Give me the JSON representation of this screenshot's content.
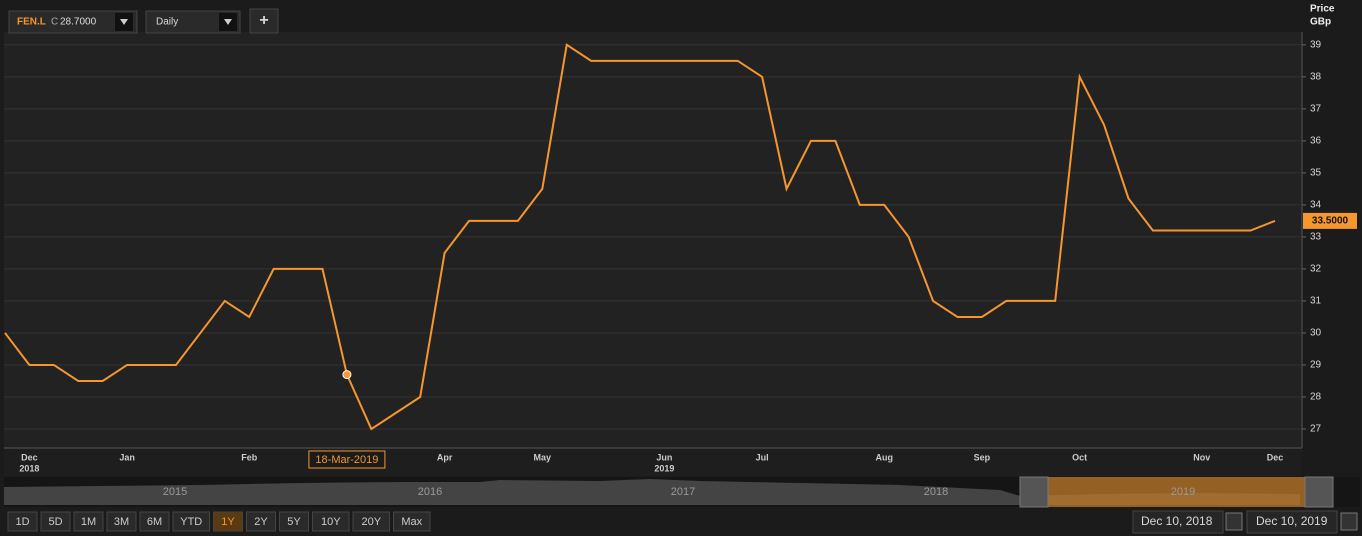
{
  "ui": {
    "ticker": "FEN.L",
    "quote_label": "C",
    "quote_value": "28.7000",
    "interval": "Daily",
    "add_button": "+",
    "navigator_years": [
      "2015",
      "2016",
      "2017",
      "2018",
      "2019"
    ],
    "ranges": [
      "1D",
      "5D",
      "1M",
      "3M",
      "6M",
      "YTD",
      "1Y",
      "2Y",
      "5Y",
      "10Y",
      "20Y",
      "Max"
    ],
    "active_range": "1Y",
    "date_from": "Dec 10, 2018",
    "date_to": "Dec 10, 2019"
  },
  "chart_data": {
    "type": "line",
    "y_label": "Price",
    "y_unit": "GBp",
    "categories": [
      null,
      "Dec",
      null,
      null,
      null,
      "Jan",
      null,
      null,
      null,
      null,
      "Feb",
      null,
      null,
      null,
      null,
      null,
      null,
      null,
      "Apr",
      null,
      null,
      null,
      "May",
      null,
      null,
      null,
      null,
      "Jun",
      null,
      null,
      null,
      "Jul",
      null,
      null,
      null,
      null,
      "Aug",
      null,
      null,
      null,
      "Sep",
      null,
      null,
      null,
      "Oct",
      null,
      null,
      null,
      null,
      "Nov",
      null,
      null,
      "Dec"
    ],
    "year_labels": [
      null,
      "2018",
      null,
      null,
      null,
      null,
      null,
      null,
      null,
      null,
      null,
      null,
      null,
      null,
      null,
      null,
      null,
      null,
      null,
      null,
      null,
      null,
      null,
      null,
      null,
      null,
      null,
      "2019",
      null,
      null,
      null,
      null,
      null,
      null,
      null,
      null,
      null,
      null,
      null,
      null,
      null,
      null,
      null,
      null,
      null,
      null,
      null,
      null,
      null,
      null,
      null,
      null,
      null
    ],
    "series": [
      {
        "name": "FEN.L",
        "color": "#f5962e",
        "values": [
          30,
          29,
          29,
          28.5,
          28.5,
          29,
          29,
          29,
          30,
          31,
          30.5,
          32,
          32,
          32,
          28.7,
          27,
          27.5,
          28,
          32.5,
          33.5,
          33.5,
          33.5,
          34.5,
          39,
          38.5,
          38.5,
          38.5,
          38.5,
          38.5,
          38.5,
          38.5,
          38,
          34.5,
          36,
          36,
          34,
          34,
          33,
          31,
          30.5,
          30.5,
          31,
          31,
          31,
          38,
          36.5,
          34.2,
          33.2,
          33.2,
          33.2,
          33.2,
          33.2,
          33.5
        ]
      }
    ],
    "cursor_label": "18-Mar-2019",
    "last_value_label": {
      "value": 33.5,
      "label": "33.5000"
    },
    "ylim": [
      26.5,
      39.4
    ],
    "yticks": [
      27,
      28,
      29,
      30,
      31,
      32,
      33,
      34,
      35,
      36,
      37,
      38,
      39
    ],
    "grid": true
  }
}
